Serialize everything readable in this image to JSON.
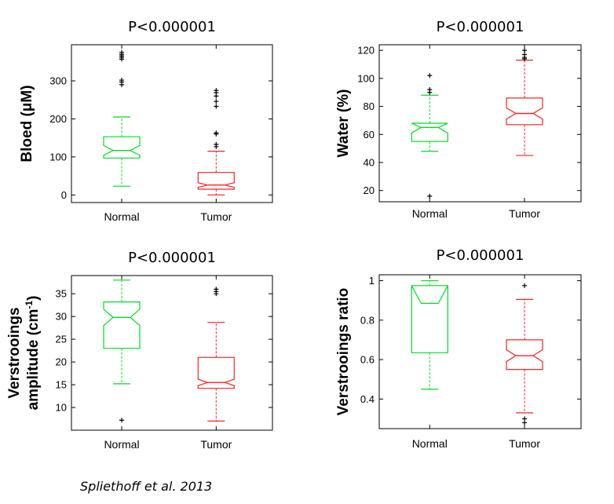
{
  "citation": "Spliethoff et al. 2013",
  "colors": {
    "normal": "#00dd22",
    "tumor": "#ff2020",
    "outlier": "#000000"
  },
  "chart_data": [
    {
      "type": "box",
      "title": "P<0.000001",
      "ylabel": "Bloed (μM)",
      "ylabel_lines": [
        "Bloed (μM)"
      ],
      "ylim": [
        -20,
        395
      ],
      "yticks": [
        0,
        100,
        200,
        300
      ],
      "categories": [
        "Normal",
        "Tumor"
      ],
      "boxes": [
        {
          "name": "Normal",
          "whisker_low": 23,
          "q1": 97,
          "median": 117,
          "q3": 153,
          "whisker_high": 205,
          "notch": [
            104,
            130
          ],
          "outliers": [
            290,
            297,
            302,
            357,
            362,
            366,
            370,
            375
          ]
        },
        {
          "name": "Tumor",
          "whisker_low": 0,
          "q1": 15,
          "median": 26,
          "q3": 59,
          "whisker_high": 115,
          "notch": [
            20,
            32
          ],
          "outliers": [
            127,
            133,
            160,
            163,
            233,
            246,
            260,
            269,
            275
          ]
        }
      ]
    },
    {
      "type": "box",
      "title": "P<0.000001",
      "ylabel": "Water (%)",
      "ylabel_lines": [
        "Water (%)"
      ],
      "ylim": [
        12,
        124
      ],
      "yticks": [
        20,
        40,
        60,
        80,
        100,
        120
      ],
      "categories": [
        "Normal",
        "Tumor"
      ],
      "boxes": [
        {
          "name": "Normal",
          "whisker_low": 48,
          "q1": 55,
          "median": 65,
          "q3": 68,
          "whisker_high": 88,
          "notch": [
            61,
            68
          ],
          "outliers": [
            16,
            90,
            92,
            102
          ]
        },
        {
          "name": "Tumor",
          "whisker_low": 45,
          "q1": 67,
          "median": 75,
          "q3": 86,
          "whisker_high": 113,
          "notch": [
            71,
            79
          ],
          "outliers": [
            114,
            115,
            117,
            120
          ]
        }
      ]
    },
    {
      "type": "box",
      "title": "P<0.000001",
      "ylabel": "Verstrooings amplitude (cm-1)",
      "ylabel_lines": [
        "Verstrooings",
        "amplitude (cm-1)"
      ],
      "ylim": [
        5,
        39
      ],
      "yticks": [
        10,
        15,
        20,
        25,
        30,
        35
      ],
      "categories": [
        "Normal",
        "Tumor"
      ],
      "boxes": [
        {
          "name": "Normal",
          "whisker_low": 15.2,
          "q1": 23,
          "median": 29.8,
          "q3": 33.2,
          "whisker_high": 38,
          "notch": [
            28,
            31.6
          ],
          "outliers": [
            7.2
          ]
        },
        {
          "name": "Tumor",
          "whisker_low": 7,
          "q1": 14.2,
          "median": 15.5,
          "q3": 21,
          "whisker_high": 28.7,
          "notch": [
            14.8,
            16.2
          ],
          "outliers": [
            35,
            35.5,
            36
          ]
        }
      ]
    },
    {
      "type": "box",
      "title": "P<0.000001",
      "ylabel": "Verstrooings ratio",
      "ylabel_lines": [
        "Verstrooings ratio"
      ],
      "ylim": [
        0.25,
        1.03
      ],
      "yticks": [
        0.4,
        0.6,
        0.8,
        1
      ],
      "categories": [
        "Normal",
        "Tumor"
      ],
      "boxes": [
        {
          "name": "Normal",
          "whisker_low": 0.45,
          "q1": 0.635,
          "median": 0.885,
          "q3": 0.975,
          "whisker_high": 1.0,
          "notch": [
            0.975,
            0.975
          ],
          "outliers": []
        },
        {
          "name": "Tumor",
          "whisker_low": 0.33,
          "q1": 0.55,
          "median": 0.62,
          "q3": 0.7,
          "whisker_high": 0.905,
          "notch": [
            0.59,
            0.65
          ],
          "outliers": [
            0.28,
            0.3,
            0.975
          ]
        }
      ]
    }
  ]
}
